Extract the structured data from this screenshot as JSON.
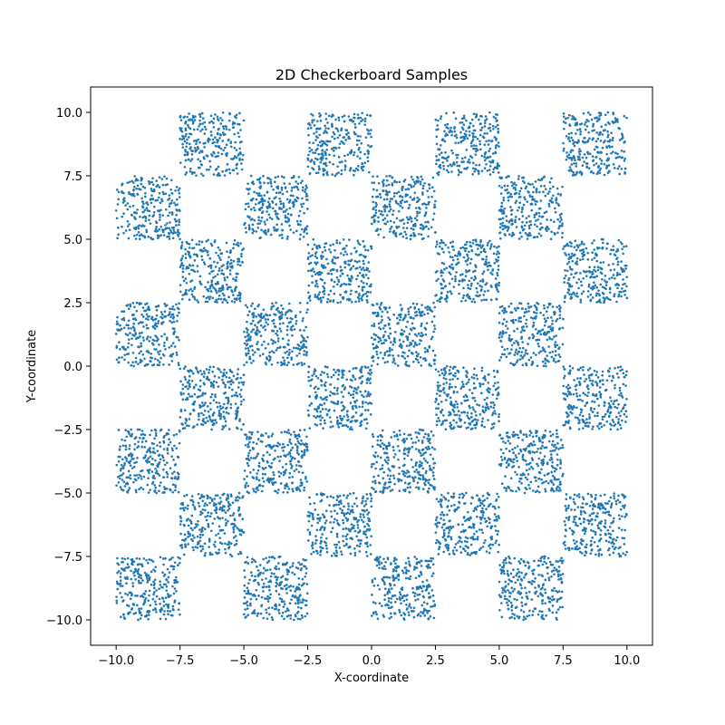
{
  "chart_data": {
    "type": "scatter",
    "title": "2D Checkerboard Samples",
    "xlabel": "X-coordinate",
    "ylabel": "Y-coordinate",
    "xlim": [
      -11,
      11
    ],
    "ylim": [
      -11,
      11
    ],
    "xticks": [
      -10.0,
      -7.5,
      -5.0,
      -2.5,
      0.0,
      2.5,
      5.0,
      7.5,
      10.0
    ],
    "yticks": [
      -10.0,
      -7.5,
      -5.0,
      -2.5,
      0.0,
      2.5,
      5.0,
      7.5,
      10.0
    ],
    "xtick_labels": [
      "−10.0",
      "−7.5",
      "−5.0",
      "−2.5",
      "0.0",
      "2.5",
      "5.0",
      "7.5",
      "10.0"
    ],
    "ytick_labels": [
      "−10.0",
      "−7.5",
      "−5.0",
      "−2.5",
      "0.0",
      "2.5",
      "5.0",
      "7.5",
      "10.0"
    ],
    "grid": false,
    "series_color": "#1f77b4",
    "filled_cells": [
      {
        "x": [
          -10,
          -7.5
        ],
        "y": [
          5,
          7.5
        ]
      },
      {
        "x": [
          -10,
          -7.5
        ],
        "y": [
          0,
          2.5
        ]
      },
      {
        "x": [
          -10,
          -7.5
        ],
        "y": [
          -5,
          -2.5
        ]
      },
      {
        "x": [
          -10,
          -7.5
        ],
        "y": [
          -10,
          -7.5
        ]
      },
      {
        "x": [
          -7.5,
          -5
        ],
        "y": [
          7.5,
          10
        ]
      },
      {
        "x": [
          -7.5,
          -5
        ],
        "y": [
          2.5,
          5
        ]
      },
      {
        "x": [
          -7.5,
          -5
        ],
        "y": [
          -2.5,
          0
        ]
      },
      {
        "x": [
          -7.5,
          -5
        ],
        "y": [
          -7.5,
          -5
        ]
      },
      {
        "x": [
          -5,
          -2.5
        ],
        "y": [
          5,
          7.5
        ]
      },
      {
        "x": [
          -5,
          -2.5
        ],
        "y": [
          0,
          2.5
        ]
      },
      {
        "x": [
          -5,
          -2.5
        ],
        "y": [
          -5,
          -2.5
        ]
      },
      {
        "x": [
          -5,
          -2.5
        ],
        "y": [
          -10,
          -7.5
        ]
      },
      {
        "x": [
          -2.5,
          0
        ],
        "y": [
          7.5,
          10
        ]
      },
      {
        "x": [
          -2.5,
          0
        ],
        "y": [
          2.5,
          5
        ]
      },
      {
        "x": [
          -2.5,
          0
        ],
        "y": [
          -2.5,
          0
        ]
      },
      {
        "x": [
          -2.5,
          0
        ],
        "y": [
          -7.5,
          -5
        ]
      },
      {
        "x": [
          0,
          2.5
        ],
        "y": [
          5,
          7.5
        ]
      },
      {
        "x": [
          0,
          2.5
        ],
        "y": [
          0,
          2.5
        ]
      },
      {
        "x": [
          0,
          2.5
        ],
        "y": [
          -5,
          -2.5
        ]
      },
      {
        "x": [
          0,
          2.5
        ],
        "y": [
          -10,
          -7.5
        ]
      },
      {
        "x": [
          2.5,
          5
        ],
        "y": [
          7.5,
          10
        ]
      },
      {
        "x": [
          2.5,
          5
        ],
        "y": [
          2.5,
          5
        ]
      },
      {
        "x": [
          2.5,
          5
        ],
        "y": [
          -2.5,
          0
        ]
      },
      {
        "x": [
          2.5,
          5
        ],
        "y": [
          -7.5,
          -5
        ]
      },
      {
        "x": [
          5,
          7.5
        ],
        "y": [
          5,
          7.5
        ]
      },
      {
        "x": [
          5,
          7.5
        ],
        "y": [
          0,
          2.5
        ]
      },
      {
        "x": [
          5,
          7.5
        ],
        "y": [
          -5,
          -2.5
        ]
      },
      {
        "x": [
          5,
          7.5
        ],
        "y": [
          -10,
          -7.5
        ]
      },
      {
        "x": [
          7.5,
          10
        ],
        "y": [
          7.5,
          10
        ]
      },
      {
        "x": [
          7.5,
          10
        ],
        "y": [
          2.5,
          5
        ]
      },
      {
        "x": [
          7.5,
          10
        ],
        "y": [
          -2.5,
          0
        ]
      },
      {
        "x": [
          7.5,
          10
        ],
        "y": [
          -7.5,
          -5
        ]
      }
    ]
  }
}
